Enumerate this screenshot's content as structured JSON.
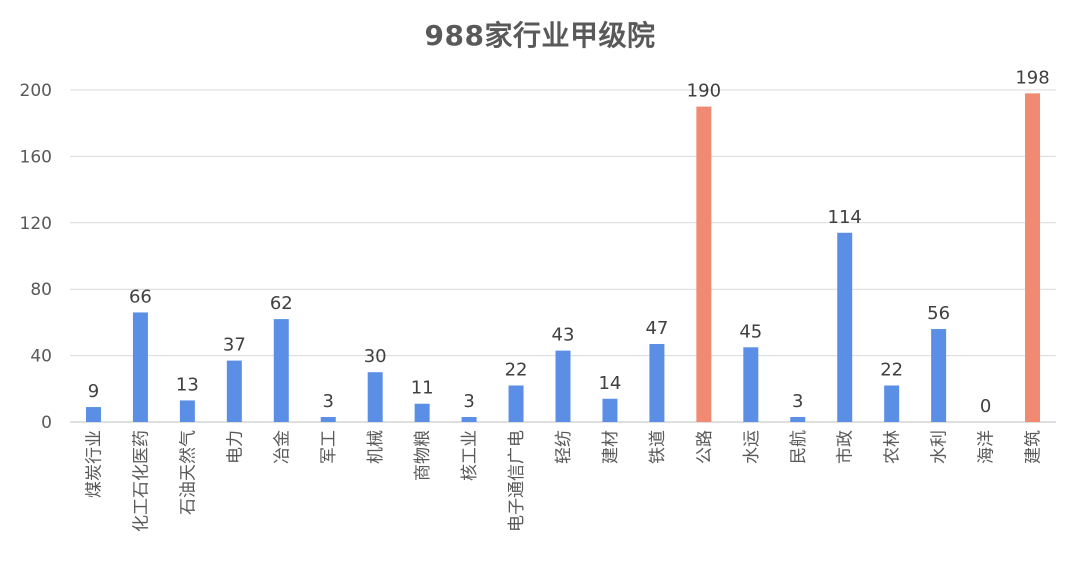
{
  "chart_data": {
    "type": "bar",
    "title": "988家行业甲级院",
    "categories": [
      "煤炭行业",
      "化工石化医药",
      "石油天然气",
      "电力",
      "冶金",
      "军工",
      "机械",
      "商物粮",
      "核工业",
      "电子通信广电",
      "轻纺",
      "建材",
      "铁道",
      "公路",
      "水运",
      "民航",
      "市政",
      "农林",
      "水利",
      "海洋",
      "建筑"
    ],
    "values": [
      9,
      66,
      13,
      37,
      62,
      3,
      30,
      11,
      3,
      22,
      43,
      14,
      47,
      190,
      45,
      3,
      114,
      22,
      56,
      0,
      198
    ],
    "highlight": [
      false,
      false,
      false,
      false,
      false,
      false,
      false,
      false,
      false,
      false,
      false,
      false,
      false,
      true,
      false,
      false,
      false,
      false,
      false,
      false,
      true
    ],
    "ylim": [
      0,
      200
    ],
    "yticks": [
      0,
      40,
      80,
      120,
      160,
      200
    ],
    "grid": true,
    "legend": "none",
    "colors": {
      "bar": "#5b8fe6",
      "highlight": "#f08a73",
      "grid": "#d9d9d9"
    }
  }
}
